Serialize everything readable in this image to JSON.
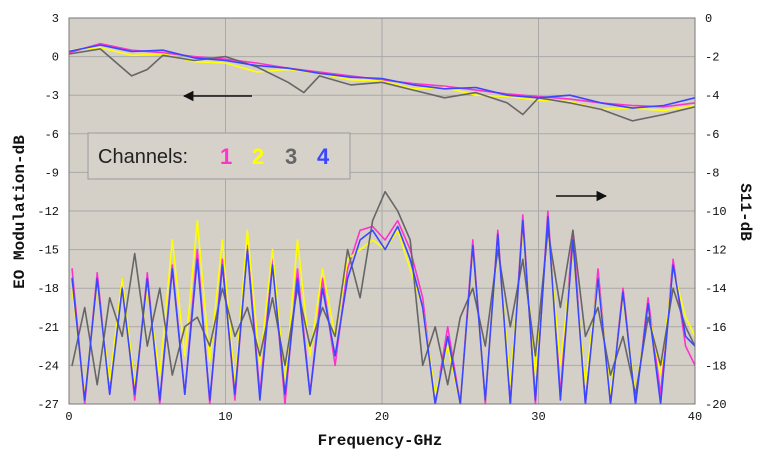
{
  "chart_data": {
    "type": "line",
    "xlabel": "Frequency-GHz",
    "ylabel_left": "EO Modulation-dB",
    "ylabel_right": "S11-dB",
    "xlim": [
      0,
      40
    ],
    "ylim_left": [
      -27,
      3
    ],
    "ylim_right": [
      -20,
      0
    ],
    "x_ticks": [
      "0",
      "10",
      "20",
      "30",
      "40"
    ],
    "y_ticks_left": [
      "3",
      "0",
      "-3",
      "-6",
      "-9",
      "-12",
      "-15",
      "-18",
      "-21",
      "-24",
      "-27"
    ],
    "y_ticks_right": [
      "0",
      "-2",
      "-4",
      "-6",
      "-8",
      "-10",
      "-12",
      "-14",
      "-16",
      "-18",
      "-20"
    ],
    "grid": true,
    "legend": {
      "label": "Channels:",
      "placement": "left",
      "entries": [
        {
          "text": "1",
          "color": "#ff33cc"
        },
        {
          "text": "2",
          "color": "#ffff00"
        },
        {
          "text": "3",
          "color": "#666666"
        },
        {
          "text": "4",
          "color": "#3a46ff"
        }
      ]
    },
    "colors": {
      "plot_bg": "#d4d0c8",
      "grid": "#a9a9a9"
    },
    "eo_series": [
      {
        "color": "#ff33cc",
        "x": [
          0,
          2,
          4,
          6,
          8,
          10,
          12,
          14,
          16,
          18,
          20,
          22,
          24,
          26,
          28,
          30,
          32,
          34,
          36,
          38,
          40
        ],
        "y": [
          0.3,
          1.0,
          0.5,
          0.3,
          0.0,
          -0.2,
          -0.5,
          -0.9,
          -1.2,
          -1.5,
          -1.8,
          -2.1,
          -2.3,
          -2.6,
          -2.9,
          -3.1,
          -3.3,
          -3.6,
          -3.8,
          -3.9,
          -3.6
        ]
      },
      {
        "color": "#ffff00",
        "x": [
          0,
          2,
          4,
          6,
          8,
          10,
          12,
          14,
          16,
          18,
          20,
          22,
          24,
          26,
          28,
          30,
          32,
          34,
          36,
          38,
          40
        ],
        "y": [
          0.5,
          0.7,
          0.1,
          0.2,
          -0.4,
          -0.5,
          -1.2,
          -1.0,
          -1.3,
          -1.8,
          -1.9,
          -2.5,
          -2.4,
          -3.0,
          -3.1,
          -3.4,
          -3.5,
          -4.1,
          -4.0,
          -4.2,
          -3.8
        ]
      },
      {
        "color": "#666666",
        "x": [
          0,
          2,
          4,
          5,
          6,
          8,
          10,
          12,
          14,
          15,
          16,
          18,
          20,
          22,
          24,
          26,
          28,
          29,
          30,
          32,
          34,
          36,
          38,
          40
        ],
        "y": [
          0.2,
          0.6,
          -1.5,
          -1.0,
          0.1,
          -0.3,
          0.0,
          -0.8,
          -2.0,
          -2.8,
          -1.5,
          -2.2,
          -2.0,
          -2.6,
          -3.2,
          -2.8,
          -3.6,
          -4.5,
          -3.2,
          -3.6,
          -4.1,
          -5.0,
          -4.5,
          -3.9
        ]
      },
      {
        "color": "#3a46ff",
        "x": [
          0,
          2,
          4,
          6,
          8,
          10,
          12,
          14,
          16,
          18,
          20,
          22,
          24,
          26,
          28,
          30,
          32,
          34,
          36,
          38,
          40
        ],
        "y": [
          0.4,
          0.9,
          0.4,
          0.5,
          -0.1,
          -0.3,
          -0.7,
          -0.9,
          -1.3,
          -1.6,
          -1.7,
          -2.2,
          -2.5,
          -2.4,
          -3.0,
          -3.2,
          -3.0,
          -3.6,
          -4.0,
          -3.8,
          -3.2
        ]
      }
    ],
    "s11_series": [
      {
        "color": "#ff33cc",
        "x": [
          0.2,
          1.0,
          1.8,
          2.6,
          3.4,
          4.2,
          5.0,
          5.8,
          6.6,
          7.4,
          8.2,
          9.0,
          9.8,
          10.6,
          11.4,
          12.2,
          13.0,
          13.8,
          14.6,
          15.4,
          16.2,
          17.0,
          17.8,
          18.6,
          19.4,
          20.2,
          21.0,
          21.8,
          22.6,
          23.4,
          24.2,
          25.0,
          25.8,
          26.6,
          27.4,
          28.2,
          29.0,
          29.8,
          30.6,
          31.4,
          32.2,
          33.0,
          33.8,
          34.6,
          35.4,
          36.2,
          37.0,
          37.8,
          38.6,
          39.4,
          40.0
        ],
        "y": [
          -13.0,
          -20.0,
          -13.2,
          -19.5,
          -13.5,
          -19.8,
          -13.2,
          -20.0,
          -12.8,
          -19.5,
          -12.0,
          -20.0,
          -12.5,
          -19.8,
          -11.8,
          -19.5,
          -12.5,
          -20.0,
          -13.0,
          -19.5,
          -13.5,
          -18.0,
          -13.0,
          -11.0,
          -10.8,
          -11.5,
          -10.5,
          -12.0,
          -14.5,
          -20.0,
          -16.0,
          -20.0,
          -11.5,
          -20.0,
          -11.0,
          -20.0,
          -10.2,
          -20.0,
          -10.0,
          -19.5,
          -11.0,
          -20.0,
          -13.0,
          -20.0,
          -14.0,
          -20.0,
          -14.5,
          -19.5,
          -12.5,
          -17.0,
          -18.0
        ]
      },
      {
        "color": "#ffff00",
        "x": [
          0.2,
          1.0,
          1.8,
          2.6,
          3.4,
          4.2,
          5.0,
          5.8,
          6.6,
          7.4,
          8.2,
          9.0,
          9.8,
          10.6,
          11.4,
          12.2,
          13.0,
          13.8,
          14.6,
          15.4,
          16.2,
          17.0,
          17.8,
          18.6,
          19.4,
          20.2,
          21.0,
          21.8,
          22.6,
          23.4,
          24.2,
          25.0,
          25.8,
          26.6,
          27.4,
          28.2,
          29.0,
          29.8,
          30.6,
          31.4,
          32.2,
          33.0,
          33.8,
          34.6,
          35.4,
          36.2,
          37.0,
          37.8,
          38.6,
          39.4,
          40.0
        ],
        "y": [
          -14.0,
          -19.5,
          -13.8,
          -18.8,
          -13.5,
          -19.0,
          -14.0,
          -18.5,
          -11.5,
          -17.5,
          -10.5,
          -17.8,
          -11.5,
          -19.0,
          -11.0,
          -18.0,
          -12.0,
          -19.0,
          -11.5,
          -17.5,
          -13.0,
          -16.5,
          -12.5,
          -12.0,
          -11.5,
          -12.0,
          -11.0,
          -13.0,
          -15.0,
          -19.5,
          -17.0,
          -20.0,
          -12.0,
          -19.8,
          -11.5,
          -19.0,
          -11.0,
          -18.5,
          -10.8,
          -18.0,
          -12.0,
          -19.0,
          -13.5,
          -19.5,
          -14.5,
          -19.5,
          -15.0,
          -18.5,
          -13.0,
          -15.5,
          -16.5
        ]
      },
      {
        "color": "#666666",
        "x": [
          0.2,
          1.0,
          1.8,
          2.6,
          3.4,
          4.2,
          5.0,
          5.8,
          6.6,
          7.4,
          8.2,
          9.0,
          9.8,
          10.6,
          11.4,
          12.2,
          13.0,
          13.8,
          14.6,
          15.4,
          16.2,
          17.0,
          17.8,
          18.6,
          19.4,
          20.2,
          21.0,
          21.8,
          22.6,
          23.4,
          24.2,
          25.0,
          25.8,
          26.6,
          27.4,
          28.2,
          29.0,
          29.8,
          30.6,
          31.4,
          32.2,
          33.0,
          33.8,
          34.6,
          35.4,
          36.2,
          37.0,
          37.8,
          38.6,
          39.4,
          40.0
        ],
        "y": [
          -18.0,
          -15.0,
          -19.0,
          -14.5,
          -16.5,
          -12.2,
          -17.0,
          -14.0,
          -18.5,
          -16.0,
          -15.5,
          -17.0,
          -14.0,
          -16.5,
          -15.0,
          -17.5,
          -14.5,
          -18.0,
          -14.0,
          -17.0,
          -15.0,
          -16.5,
          -12.0,
          -14.5,
          -10.5,
          -9.0,
          -10.0,
          -11.5,
          -18.0,
          -16.0,
          -19.0,
          -15.5,
          -14.0,
          -17.0,
          -12.0,
          -16.0,
          -12.5,
          -17.5,
          -11.0,
          -15.0,
          -11.0,
          -16.5,
          -15.0,
          -18.5,
          -16.5,
          -19.5,
          -15.5,
          -18.0,
          -14.0,
          -16.0,
          -17.0
        ]
      },
      {
        "color": "#3a46ff",
        "x": [
          0.2,
          1.0,
          1.8,
          2.6,
          3.4,
          4.2,
          5.0,
          5.8,
          6.6,
          7.4,
          8.2,
          9.0,
          9.8,
          10.6,
          11.4,
          12.2,
          13.0,
          13.8,
          14.6,
          15.4,
          16.2,
          17.0,
          17.8,
          18.6,
          19.4,
          20.2,
          21.0,
          21.8,
          22.6,
          23.4,
          24.2,
          25.0,
          25.8,
          26.6,
          27.4,
          28.2,
          29.0,
          29.8,
          30.6,
          31.4,
          32.2,
          33.0,
          33.8,
          34.6,
          35.4,
          36.2,
          37.0,
          37.8,
          38.6,
          39.4,
          40.0
        ],
        "y": [
          -13.5,
          -19.8,
          -13.5,
          -19.5,
          -14.0,
          -19.5,
          -13.5,
          -19.8,
          -13.0,
          -19.5,
          -12.5,
          -19.8,
          -12.8,
          -19.5,
          -12.0,
          -19.8,
          -12.8,
          -19.5,
          -13.5,
          -19.5,
          -14.0,
          -17.5,
          -13.5,
          -11.5,
          -11.0,
          -12.0,
          -10.8,
          -12.5,
          -15.0,
          -20.0,
          -16.5,
          -20.0,
          -11.8,
          -19.8,
          -11.2,
          -20.0,
          -10.5,
          -19.8,
          -10.3,
          -19.8,
          -11.5,
          -20.0,
          -13.5,
          -20.0,
          -14.2,
          -20.0,
          -14.8,
          -20.0,
          -12.8,
          -16.5,
          -17.0
        ]
      }
    ]
  }
}
